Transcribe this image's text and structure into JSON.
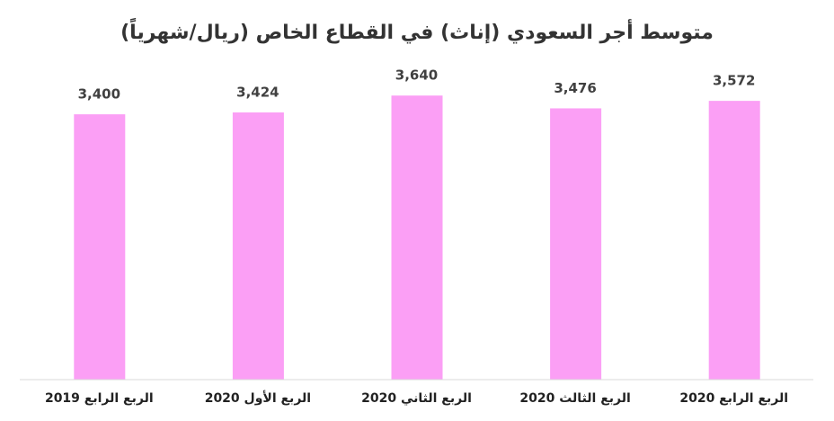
{
  "chart_data": {
    "type": "bar",
    "title": "متوسط أجر السعودي (إناث) في القطاع الخاص (ريال/شهرياً)",
    "categories": [
      "الربع الرابع 2019",
      "الربع الأول 2020",
      "الربع الثاني 2020",
      "الربع الثالث 2020",
      "الربع الرابع 2020"
    ],
    "values": [
      3400,
      3424,
      3640,
      3476,
      3572
    ],
    "value_labels": [
      "3,400",
      "3,424",
      "3,640",
      "3,476",
      "3,572"
    ],
    "color": "#fb9ff5",
    "ylim": [
      0,
      4000
    ]
  }
}
